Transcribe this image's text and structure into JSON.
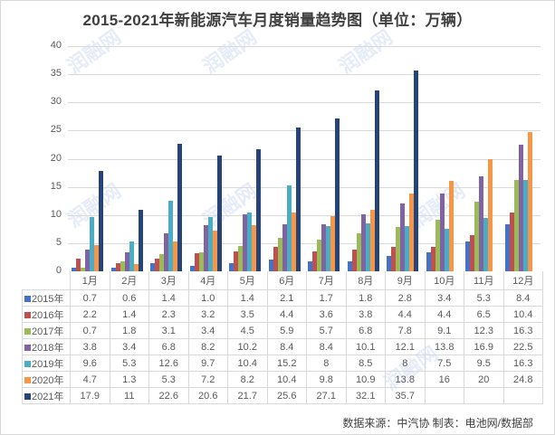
{
  "title": "2015-2021年新能源汽车月度销量趋势图（单位：万辆）",
  "source_note": "数据来源：中汽协  制表：电池网/数据部",
  "watermark": "润融网",
  "chart_data": {
    "type": "bar",
    "title": "2015-2021年新能源汽车月度销量趋势图（单位：万辆）",
    "xlabel": "",
    "ylabel": "万辆",
    "ylim": [
      0,
      40
    ],
    "yticks": [
      0,
      5,
      10,
      15,
      20,
      25,
      30,
      35,
      40
    ],
    "grid": true,
    "legend_position": "data-table",
    "categories": [
      "1月",
      "2月",
      "3月",
      "4月",
      "5月",
      "6月",
      "7月",
      "8月",
      "9月",
      "10月",
      "11月",
      "12月"
    ],
    "series": [
      {
        "name": "2015年",
        "color": "#4472c4",
        "values": [
          0.7,
          0.6,
          1.4,
          1.0,
          1.4,
          2.1,
          1.7,
          1.8,
          2.8,
          3.4,
          5.3,
          8.4
        ],
        "labels": [
          "0.7",
          "0.6",
          "1.4",
          "1.0",
          "1.4",
          "2.1",
          "1.7",
          "1.8",
          "2.8",
          "3.4",
          "5.3",
          "8.4"
        ]
      },
      {
        "name": "2016年",
        "color": "#c0504d",
        "values": [
          2.2,
          1.4,
          2.3,
          3.2,
          3.5,
          4.4,
          3.6,
          3.8,
          4.4,
          4.4,
          6.5,
          10.4
        ],
        "labels": [
          "2.2",
          "1.4",
          "2.3",
          "3.2",
          "3.5",
          "4.4",
          "3.6",
          "3.8",
          "4.4",
          "4.4",
          "6.5",
          "10.4"
        ]
      },
      {
        "name": "2017年",
        "color": "#9bbb59",
        "values": [
          0.7,
          1.8,
          3.1,
          3.4,
          4.5,
          5.9,
          5.7,
          6.8,
          7.8,
          9.1,
          12.3,
          16.3
        ],
        "labels": [
          "0.7",
          "1.8",
          "3.1",
          "3.4",
          "4.5",
          "5.9",
          "5.7",
          "6.8",
          "7.8",
          "9.1",
          "12.3",
          "16.3"
        ]
      },
      {
        "name": "2018年",
        "color": "#8064a2",
        "values": [
          3.8,
          3.4,
          6.8,
          8.2,
          10.2,
          8.4,
          8.4,
          10.1,
          12.1,
          13.8,
          16.9,
          22.5
        ],
        "labels": [
          "3.8",
          "3.4",
          "6.8",
          "8.2",
          "10.2",
          "8.4",
          "8.4",
          "10.1",
          "12.1",
          "13.8",
          "16.9",
          "22.5"
        ]
      },
      {
        "name": "2019年",
        "color": "#4bacc6",
        "values": [
          9.6,
          5.3,
          12.6,
          9.7,
          10.4,
          15.2,
          8,
          8.5,
          8,
          7.5,
          9.5,
          16.3
        ],
        "labels": [
          "9.6",
          "5.3",
          "12.6",
          "9.7",
          "10.4",
          "15.2",
          "8",
          "8.5",
          "8",
          "7.5",
          "9.5",
          "16.3"
        ]
      },
      {
        "name": "2020年",
        "color": "#f79646",
        "values": [
          4.7,
          1.3,
          5.3,
          7.2,
          8.2,
          10.4,
          9.8,
          10.9,
          13.8,
          16,
          20,
          24.8
        ],
        "labels": [
          "4.7",
          "1.3",
          "5.3",
          "7.2",
          "8.2",
          "10.4",
          "9.8",
          "10.9",
          "13.8",
          "16",
          "20",
          "24.8"
        ]
      },
      {
        "name": "2021年",
        "color": "#264478",
        "values": [
          17.9,
          11,
          22.6,
          20.6,
          21.7,
          25.6,
          27.1,
          32.1,
          35.7,
          null,
          null,
          null
        ],
        "labels": [
          "17.9",
          "11",
          "22.6",
          "20.6",
          "21.7",
          "25.6",
          "27.1",
          "32.1",
          "35.7",
          "",
          "",
          ""
        ]
      }
    ]
  }
}
